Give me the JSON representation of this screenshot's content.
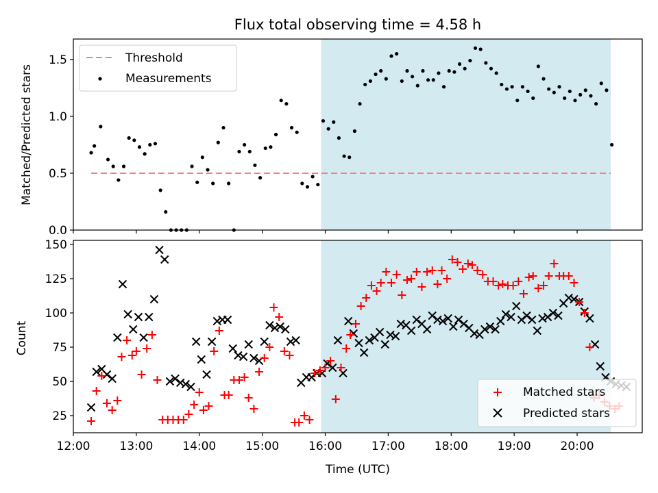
{
  "chart_data": [
    {
      "type": "scatter",
      "title": "Flux total observing time = 4.58 h",
      "ylabel": "Matched/Predicted stars",
      "xlim": [
        "12:00",
        "21:02"
      ],
      "ylim": [
        0,
        1.68
      ],
      "yticks": [
        0.0,
        0.5,
        1.0,
        1.5
      ],
      "ytick_labels": [
        "0.0",
        "0.5",
        "1.0",
        "1.5"
      ],
      "grid": false,
      "legend_position": "upper-left",
      "shaded_region": {
        "x_start": "15:56",
        "x_end": "20:32",
        "color": "#d4eaf1"
      },
      "threshold": {
        "name": "Threshold",
        "value": 0.5,
        "x_start": "12:17",
        "x_end": "20:32",
        "color": "#ff7a7a"
      },
      "series": [
        {
          "name": "Measurements",
          "marker": "dot",
          "color": "#000000",
          "x": [
            "12:17",
            "12:20",
            "12:26",
            "12:33",
            "12:38",
            "12:43",
            "12:48",
            "12:53",
            "12:58",
            "13:03",
            "13:08",
            "13:13",
            "13:18",
            "13:23",
            "13:28",
            "13:33",
            "13:38",
            "13:43",
            "13:48",
            "13:53",
            "13:58",
            "14:03",
            "14:08",
            "14:13",
            "14:18",
            "14:23",
            "14:28",
            "14:33",
            "14:38",
            "14:43",
            "14:48",
            "14:53",
            "14:58",
            "15:03",
            "15:08",
            "15:13",
            "15:18",
            "15:23",
            "15:28",
            "15:33",
            "15:38",
            "15:43",
            "15:48",
            "15:53",
            "15:58",
            "16:03",
            "16:08",
            "16:13",
            "16:18",
            "16:23",
            "16:28",
            "16:33",
            "16:38",
            "16:43",
            "16:48",
            "16:53",
            "16:58",
            "17:03",
            "17:08",
            "17:13",
            "17:18",
            "17:23",
            "17:28",
            "17:33",
            "17:38",
            "17:43",
            "17:48",
            "17:53",
            "17:58",
            "18:03",
            "18:08",
            "18:13",
            "18:18",
            "18:23",
            "18:28",
            "18:33",
            "18:38",
            "18:43",
            "18:48",
            "18:53",
            "18:58",
            "19:03",
            "19:08",
            "19:13",
            "19:18",
            "19:23",
            "19:28",
            "19:33",
            "19:38",
            "19:43",
            "19:48",
            "19:53",
            "19:58",
            "20:03",
            "20:08",
            "20:13",
            "20:18",
            "20:23",
            "20:28",
            "20:33"
          ],
          "y": [
            0.68,
            0.74,
            0.91,
            0.62,
            0.56,
            0.44,
            0.56,
            0.81,
            0.79,
            0.73,
            0.67,
            0.75,
            0.76,
            0.35,
            0.16,
            0.0,
            0.0,
            0.0,
            0.0,
            0.56,
            0.42,
            0.64,
            0.53,
            0.41,
            0.77,
            0.9,
            0.41,
            0.0,
            0.69,
            0.75,
            0.69,
            0.57,
            0.46,
            0.72,
            0.73,
            0.84,
            1.14,
            1.11,
            0.9,
            0.86,
            0.41,
            0.38,
            0.47,
            0.4,
            0.96,
            0.89,
            0.95,
            0.81,
            0.65,
            0.64,
            0.87,
            1.11,
            1.28,
            1.31,
            1.37,
            1.4,
            1.33,
            1.53,
            1.55,
            1.31,
            1.4,
            1.35,
            1.27,
            1.4,
            1.32,
            1.32,
            1.38,
            1.26,
            1.4,
            1.39,
            1.46,
            1.42,
            1.49,
            1.6,
            1.59,
            1.47,
            1.42,
            1.38,
            1.28,
            1.24,
            1.26,
            1.14,
            1.26,
            1.22,
            1.16,
            1.44,
            1.33,
            1.24,
            1.21,
            1.26,
            1.16,
            1.22,
            1.14,
            1.19,
            1.23,
            1.18,
            1.11,
            1.29,
            1.23,
            0.75
          ]
        }
      ]
    },
    {
      "type": "scatter",
      "xlabel": "Time (UTC)",
      "ylabel": "Count",
      "xlim": [
        "12:00",
        "21:02"
      ],
      "xticks": [
        "12:00",
        "13:00",
        "14:00",
        "15:00",
        "16:00",
        "17:00",
        "18:00",
        "19:00",
        "20:00"
      ],
      "ylim": [
        12.5,
        153
      ],
      "yticks": [
        25,
        50,
        75,
        100,
        125,
        150
      ],
      "ytick_labels": [
        "25",
        "50",
        "75",
        "100",
        "125",
        "150"
      ],
      "grid": false,
      "legend_position": "lower-right",
      "shaded_region": {
        "x_start": "15:56",
        "x_end": "20:32",
        "color": "#d4eaf1"
      },
      "series": [
        {
          "name": "Matched stars",
          "marker": "plus",
          "color": "#ff0000",
          "x": [
            "12:17",
            "12:22",
            "12:27",
            "12:32",
            "12:37",
            "12:42",
            "12:46",
            "12:51",
            "12:56",
            "13:00",
            "13:05",
            "13:10",
            "13:15",
            "13:20",
            "13:25",
            "13:30",
            "13:35",
            "13:40",
            "13:45",
            "13:50",
            "13:55",
            "14:00",
            "14:04",
            "14:09",
            "14:14",
            "14:19",
            "14:24",
            "14:28",
            "14:33",
            "14:38",
            "14:43",
            "14:47",
            "14:52",
            "14:57",
            "15:02",
            "15:07",
            "15:11",
            "15:16",
            "15:21",
            "15:26",
            "15:31",
            "15:35",
            "15:40",
            "15:45",
            "15:50",
            "15:55",
            "16:00",
            "16:05",
            "16:10",
            "16:15",
            "16:20",
            "16:24",
            "16:29",
            "16:34",
            "16:39",
            "16:44",
            "16:49",
            "16:53",
            "16:58",
            "17:03",
            "17:08",
            "17:13",
            "17:18",
            "17:22",
            "17:27",
            "17:32",
            "17:37",
            "17:42",
            "17:47",
            "17:51",
            "17:56",
            "18:01",
            "18:06",
            "18:11",
            "18:16",
            "18:20",
            "18:25",
            "18:30",
            "18:35",
            "18:40",
            "18:45",
            "18:49",
            "18:54",
            "18:59",
            "19:04",
            "19:09",
            "19:14",
            "19:18",
            "19:23",
            "19:28",
            "19:33",
            "19:38",
            "19:43",
            "19:47",
            "19:52",
            "19:57",
            "20:02",
            "20:07",
            "20:12",
            "20:16",
            "20:21",
            "20:26",
            "20:31",
            "20:36",
            "20:40"
          ],
          "y": [
            21,
            43,
            54,
            34,
            29,
            36,
            68,
            80,
            69,
            72,
            55,
            74,
            84,
            51,
            22,
            22,
            22,
            22,
            22,
            26,
            33,
            42,
            29,
            32,
            72,
            87,
            40,
            40,
            51,
            51,
            53,
            38,
            30,
            57,
            67,
            75,
            104,
            97,
            72,
            69,
            20,
            20,
            25,
            22,
            56,
            58,
            60,
            65,
            37,
            60,
            74,
            84,
            92,
            105,
            111,
            120,
            116,
            122,
            130,
            122,
            128,
            113,
            124,
            125,
            130,
            119,
            130,
            131,
            121,
            131,
            125,
            139,
            137,
            132,
            136,
            135,
            131,
            128,
            123,
            123,
            120,
            121,
            120,
            120,
            123,
            114,
            126,
            127,
            118,
            120,
            127,
            136,
            127,
            127,
            127,
            122,
            108,
            100,
            75,
            38,
            40,
            35,
            32,
            30,
            32
          ]
        },
        {
          "name": "Predicted stars",
          "marker": "x",
          "color": "#000000",
          "x": [
            "12:17",
            "12:22",
            "12:27",
            "12:32",
            "12:37",
            "12:42",
            "12:47",
            "12:52",
            "12:57",
            "13:02",
            "13:07",
            "13:12",
            "13:17",
            "13:22",
            "13:27",
            "13:32",
            "13:37",
            "13:42",
            "13:47",
            "13:52",
            "13:57",
            "14:02",
            "14:07",
            "14:12",
            "14:17",
            "14:22",
            "14:27",
            "14:32",
            "14:37",
            "14:42",
            "14:47",
            "14:52",
            "14:57",
            "15:02",
            "15:07",
            "15:12",
            "15:17",
            "15:22",
            "15:27",
            "15:32",
            "15:37",
            "15:42",
            "15:47",
            "15:52",
            "15:57",
            "16:02",
            "16:07",
            "16:12",
            "16:17",
            "16:22",
            "16:27",
            "16:32",
            "16:37",
            "16:42",
            "16:47",
            "16:52",
            "16:57",
            "17:02",
            "17:07",
            "17:12",
            "17:17",
            "17:22",
            "17:27",
            "17:32",
            "17:37",
            "17:42",
            "17:47",
            "17:52",
            "17:57",
            "18:02",
            "18:07",
            "18:12",
            "18:17",
            "18:22",
            "18:27",
            "18:32",
            "18:37",
            "18:42",
            "18:47",
            "18:52",
            "18:57",
            "19:02",
            "19:07",
            "19:12",
            "19:17",
            "19:22",
            "19:27",
            "19:32",
            "19:37",
            "19:42",
            "19:47",
            "19:52",
            "19:57",
            "20:02",
            "20:07",
            "20:12",
            "20:17",
            "20:22",
            "20:27",
            "20:32",
            "20:37",
            "20:42",
            "20:47"
          ],
          "y": [
            31,
            57,
            59,
            55,
            52,
            82,
            121,
            99,
            88,
            97,
            82,
            97,
            110,
            146,
            139,
            50,
            52,
            49,
            48,
            46,
            79,
            66,
            55,
            79,
            94,
            95,
            95,
            74,
            69,
            68,
            77,
            67,
            65,
            79,
            91,
            89,
            90,
            88,
            79,
            80,
            49,
            53,
            53,
            56,
            56,
            63,
            60,
            80,
            56,
            94,
            85,
            78,
            71,
            80,
            82,
            86,
            77,
            84,
            83,
            92,
            91,
            87,
            95,
            92,
            88,
            98,
            95,
            94,
            96,
            90,
            95,
            92,
            89,
            85,
            84,
            88,
            90,
            88,
            94,
            99,
            97,
            105,
            95,
            98,
            95,
            87,
            96,
            97,
            100,
            98,
            107,
            111,
            110,
            108,
            101,
            96,
            77,
            61,
            53,
            50,
            48,
            47,
            46
          ]
        }
      ]
    }
  ]
}
